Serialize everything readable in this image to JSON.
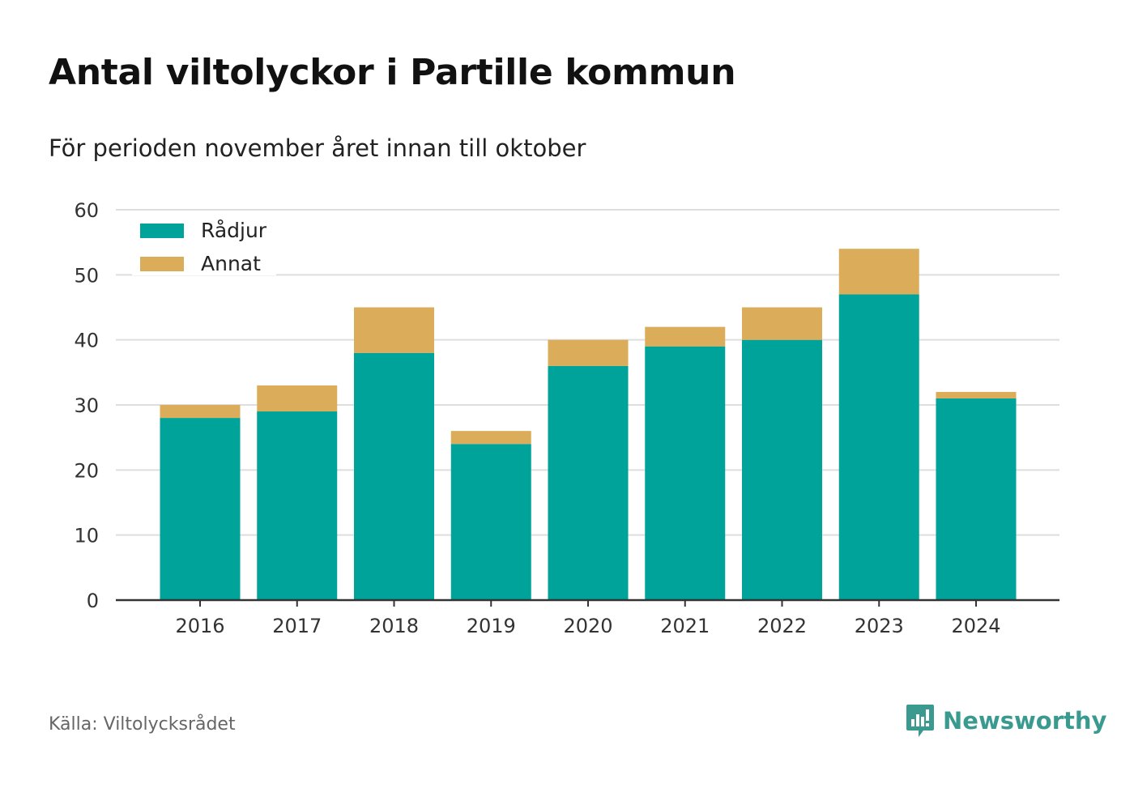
{
  "title": "Antal viltolyckor i Partille kommun",
  "subtitle": "För perioden november året innan till oktober",
  "source": "Källa: Viltolycksrådet",
  "brand": {
    "name": "Newsworthy",
    "icon": "newsworthy-logo-icon",
    "color": "#3a9a90"
  },
  "chart_data": {
    "type": "bar",
    "stacked": true,
    "categories": [
      "2016",
      "2017",
      "2018",
      "2019",
      "2020",
      "2021",
      "2022",
      "2023",
      "2024"
    ],
    "series": [
      {
        "name": "Rådjur",
        "color": "#00a39a",
        "values": [
          28,
          29,
          38,
          24,
          36,
          39,
          40,
          47,
          31
        ]
      },
      {
        "name": "Annat",
        "color": "#dbad5a",
        "values": [
          2,
          4,
          7,
          2,
          4,
          3,
          5,
          7,
          1
        ]
      }
    ],
    "ylim": [
      0,
      60
    ],
    "yticks": [
      0,
      10,
      20,
      30,
      40,
      50,
      60
    ],
    "grid": true,
    "legend": "top-left"
  }
}
